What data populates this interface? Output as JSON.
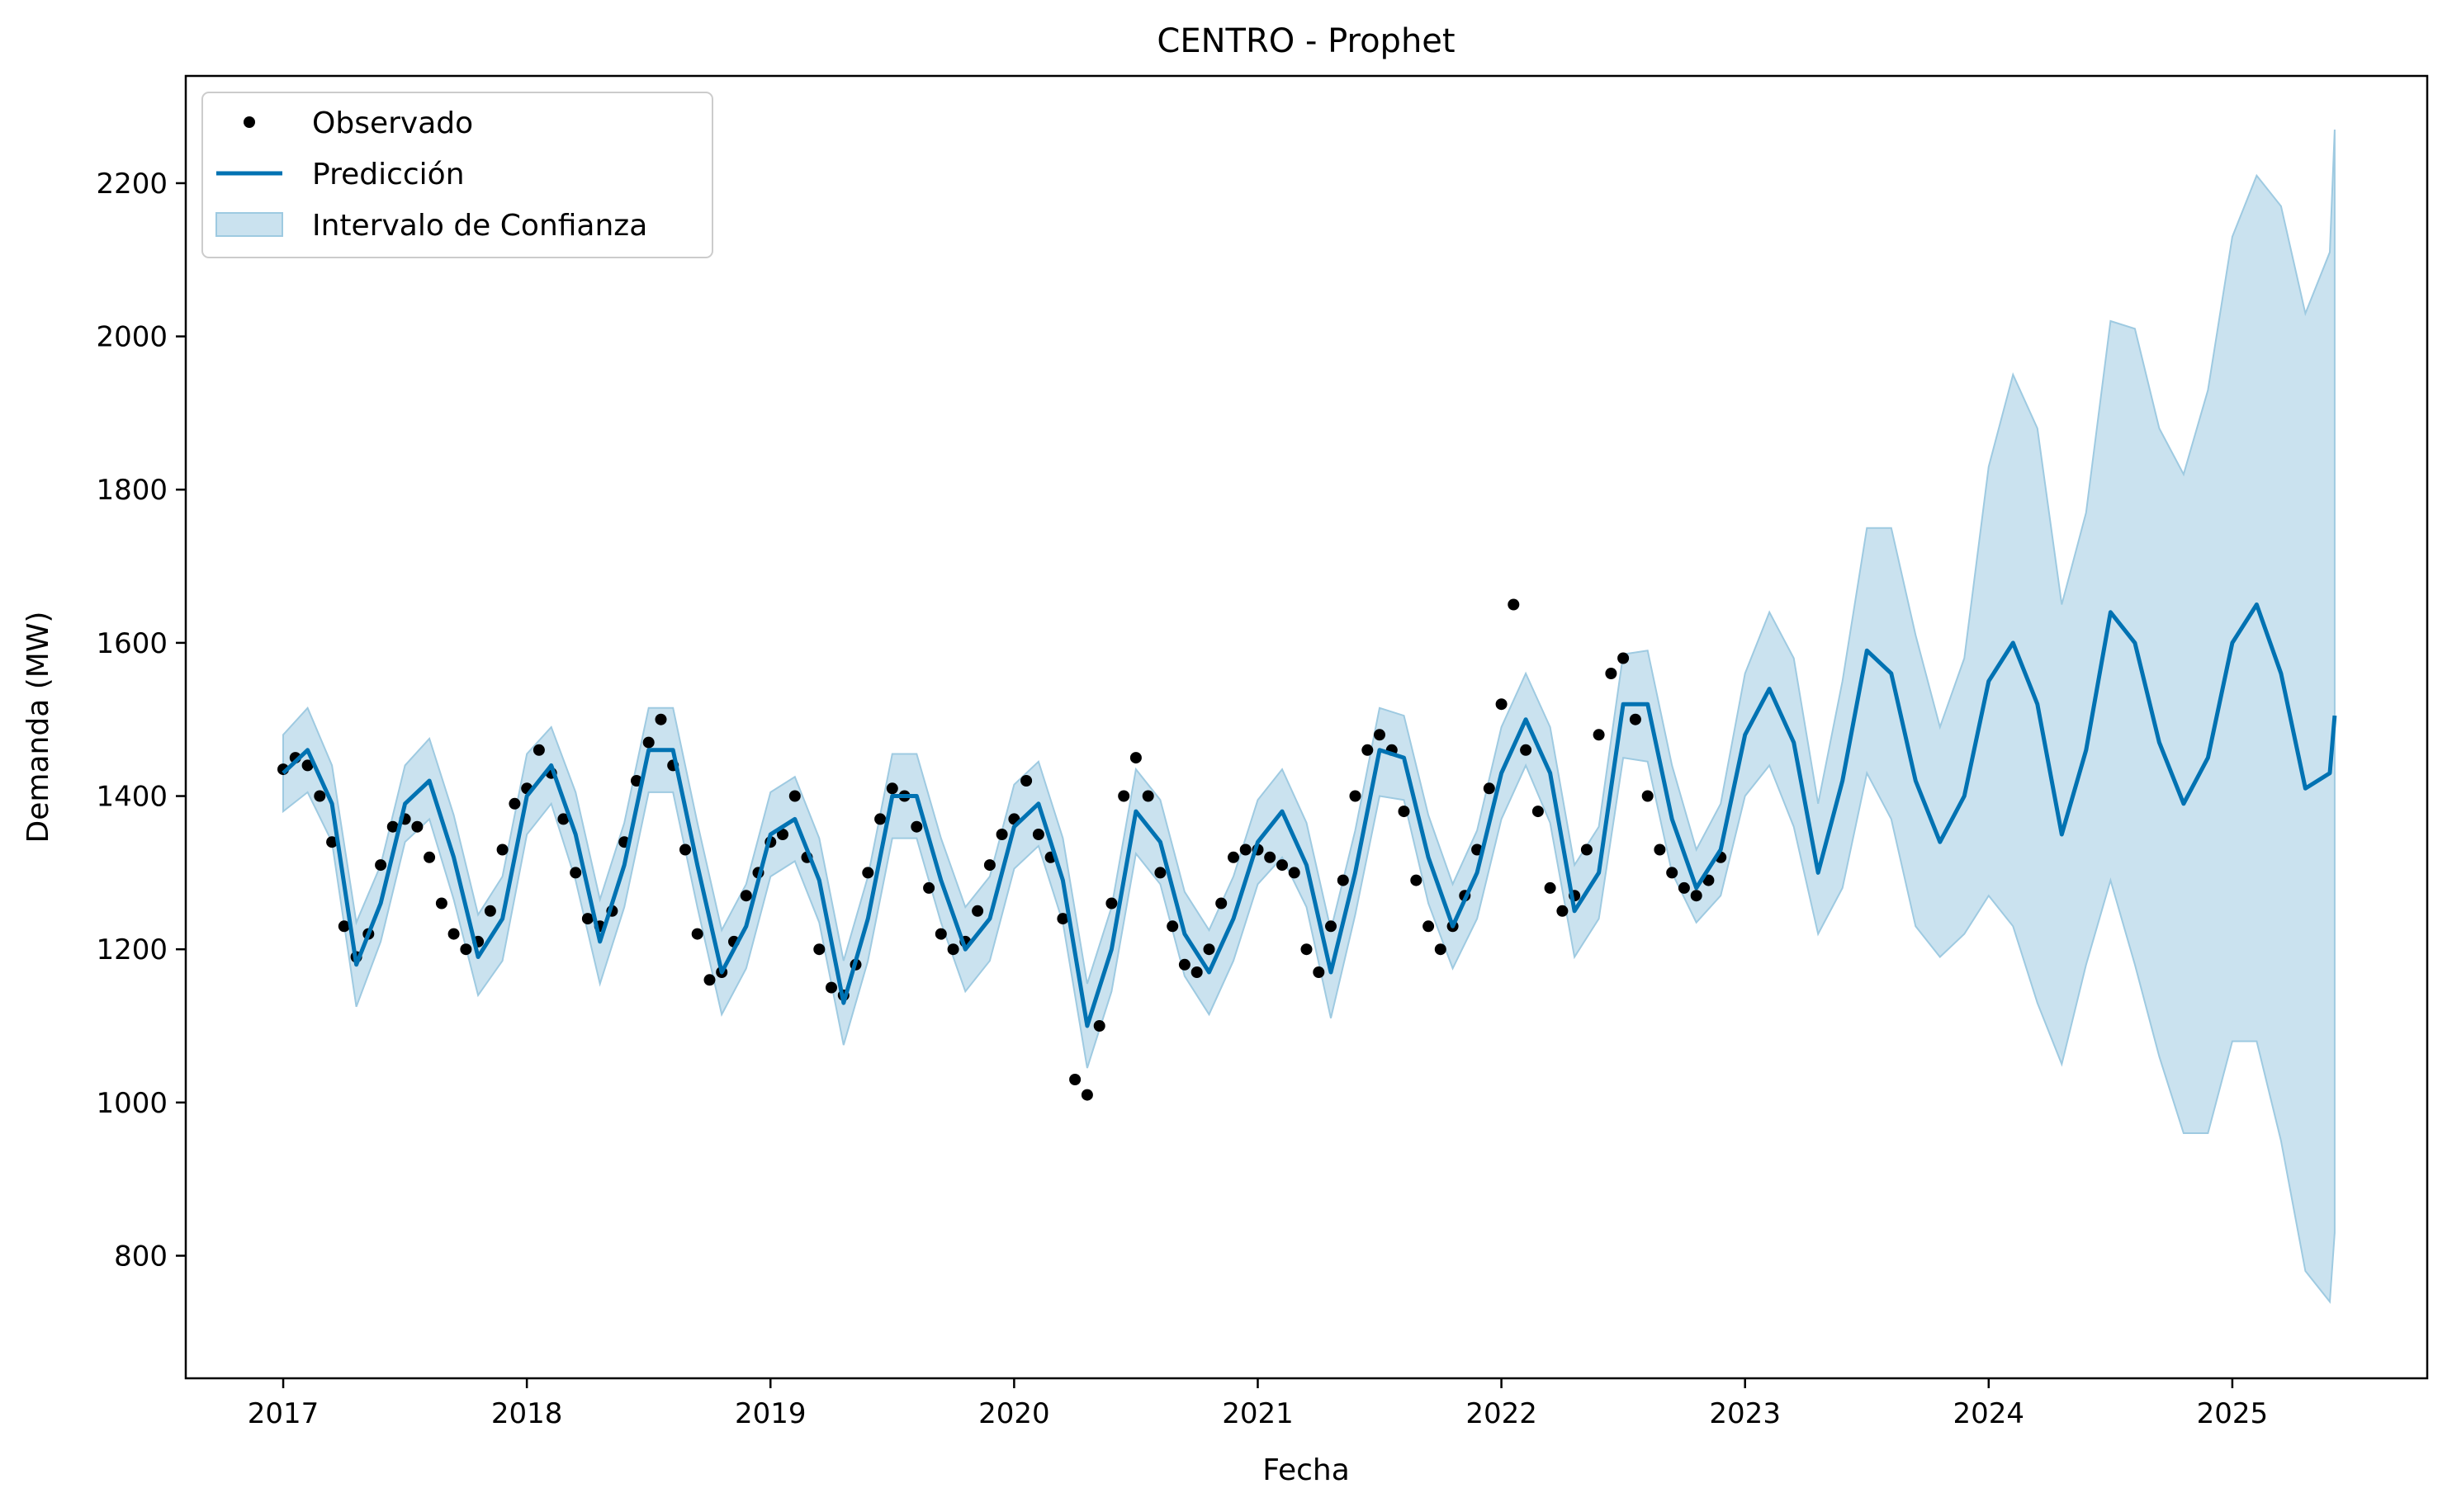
{
  "chart_data": {
    "type": "line",
    "title": "CENTRO - Prophet",
    "xlabel": "Fecha",
    "ylabel": "Demanda (MW)",
    "xlim": [
      2016.6,
      2025.8
    ],
    "ylim": [
      640,
      2340
    ],
    "x_ticks": [
      2017,
      2018,
      2019,
      2020,
      2021,
      2022,
      2023,
      2024,
      2025
    ],
    "x_tick_labels": [
      "2017",
      "2018",
      "2019",
      "2020",
      "2021",
      "2022",
      "2023",
      "2024",
      "2025"
    ],
    "y_ticks": [
      800,
      1000,
      1200,
      1400,
      1600,
      1800,
      2000,
      2200
    ],
    "y_tick_labels": [
      "800",
      "1000",
      "1200",
      "1400",
      "1600",
      "1800",
      "2000",
      "2200"
    ],
    "grid": false,
    "legend_position": "top-left",
    "colors": {
      "observed": "#000000",
      "prediction": "#0072b2",
      "interval": "#9ecae1"
    },
    "series": [
      {
        "name": "Observado",
        "kind": "scatter",
        "x": [
          2017.0,
          2017.05,
          2017.1,
          2017.15,
          2017.2,
          2017.25,
          2017.3,
          2017.35,
          2017.4,
          2017.45,
          2017.5,
          2017.55,
          2017.6,
          2017.65,
          2017.7,
          2017.75,
          2017.8,
          2017.85,
          2017.9,
          2017.95,
          2018.0,
          2018.05,
          2018.1,
          2018.15,
          2018.2,
          2018.25,
          2018.3,
          2018.35,
          2018.4,
          2018.45,
          2018.5,
          2018.55,
          2018.6,
          2018.65,
          2018.7,
          2018.75,
          2018.8,
          2018.85,
          2018.9,
          2018.95,
          2019.0,
          2019.05,
          2019.1,
          2019.15,
          2019.2,
          2019.25,
          2019.3,
          2019.35,
          2019.4,
          2019.45,
          2019.5,
          2019.55,
          2019.6,
          2019.65,
          2019.7,
          2019.75,
          2019.8,
          2019.85,
          2019.9,
          2019.95,
          2020.0,
          2020.05,
          2020.1,
          2020.15,
          2020.2,
          2020.25,
          2020.3,
          2020.35,
          2020.4,
          2020.45,
          2020.5,
          2020.55,
          2020.6,
          2020.65,
          2020.7,
          2020.75,
          2020.8,
          2020.85,
          2020.9,
          2020.95,
          2021.0,
          2021.05,
          2021.1,
          2021.15,
          2021.2,
          2021.25,
          2021.3,
          2021.35,
          2021.4,
          2021.45,
          2021.5,
          2021.55,
          2021.6,
          2021.65,
          2021.7,
          2021.75,
          2021.8,
          2021.85,
          2021.9,
          2021.95,
          2022.0,
          2022.05,
          2022.1,
          2022.15,
          2022.2,
          2022.25,
          2022.3,
          2022.35,
          2022.4,
          2022.45,
          2022.5,
          2022.55,
          2022.6,
          2022.65,
          2022.7,
          2022.75,
          2022.8,
          2022.85,
          2022.9
        ],
        "y": [
          1435,
          1450,
          1440,
          1400,
          1340,
          1230,
          1190,
          1220,
          1310,
          1360,
          1370,
          1360,
          1320,
          1260,
          1220,
          1200,
          1210,
          1250,
          1330,
          1390,
          1410,
          1460,
          1430,
          1370,
          1300,
          1240,
          1230,
          1250,
          1340,
          1420,
          1470,
          1500,
          1440,
          1330,
          1220,
          1160,
          1170,
          1210,
          1270,
          1300,
          1340,
          1350,
          1400,
          1320,
          1200,
          1150,
          1140,
          1180,
          1300,
          1370,
          1410,
          1400,
          1360,
          1280,
          1220,
          1200,
          1210,
          1250,
          1310,
          1350,
          1370,
          1420,
          1350,
          1320,
          1240,
          1030,
          1010,
          1100,
          1260,
          1400,
          1450,
          1400,
          1300,
          1230,
          1180,
          1170,
          1200,
          1260,
          1320,
          1330,
          1330,
          1320,
          1310,
          1300,
          1200,
          1170,
          1230,
          1290,
          1400,
          1460,
          1480,
          1460,
          1380,
          1290,
          1230,
          1200,
          1230,
          1270,
          1330,
          1410,
          1520,
          1650,
          1460,
          1380,
          1280,
          1250,
          1270,
          1330,
          1480,
          1560,
          1580,
          1500,
          1400,
          1330,
          1300,
          1280,
          1270,
          1290,
          1320
        ]
      },
      {
        "name": "Predicción",
        "kind": "line",
        "x": [
          2017.0,
          2017.1,
          2017.2,
          2017.3,
          2017.4,
          2017.5,
          2017.6,
          2017.7,
          2017.8,
          2017.9,
          2018.0,
          2018.1,
          2018.2,
          2018.3,
          2018.4,
          2018.5,
          2018.6,
          2018.7,
          2018.8,
          2018.9,
          2019.0,
          2019.1,
          2019.2,
          2019.3,
          2019.4,
          2019.5,
          2019.6,
          2019.7,
          2019.8,
          2019.9,
          2020.0,
          2020.1,
          2020.2,
          2020.3,
          2020.4,
          2020.5,
          2020.6,
          2020.7,
          2020.8,
          2020.9,
          2021.0,
          2021.1,
          2021.2,
          2021.3,
          2021.4,
          2021.5,
          2021.6,
          2021.7,
          2021.8,
          2021.9,
          2022.0,
          2022.1,
          2022.2,
          2022.3,
          2022.4,
          2022.5,
          2022.6,
          2022.7,
          2022.8,
          2022.9,
          2023.0,
          2023.1,
          2023.2,
          2023.3,
          2023.4,
          2023.5,
          2023.6,
          2023.7,
          2023.8,
          2023.9,
          2024.0,
          2024.1,
          2024.2,
          2024.3,
          2024.4,
          2024.5,
          2024.6,
          2024.7,
          2024.8,
          2024.9,
          2025.0,
          2025.1,
          2025.2,
          2025.3,
          2025.4,
          2025.42
        ],
        "y": [
          1430,
          1460,
          1390,
          1180,
          1260,
          1390,
          1420,
          1320,
          1190,
          1240,
          1400,
          1440,
          1350,
          1210,
          1310,
          1460,
          1460,
          1310,
          1170,
          1230,
          1350,
          1370,
          1290,
          1130,
          1240,
          1400,
          1400,
          1290,
          1200,
          1240,
          1360,
          1390,
          1290,
          1100,
          1200,
          1380,
          1340,
          1220,
          1170,
          1240,
          1340,
          1380,
          1310,
          1170,
          1300,
          1460,
          1450,
          1320,
          1230,
          1300,
          1430,
          1500,
          1430,
          1250,
          1300,
          1520,
          1520,
          1370,
          1280,
          1330,
          1480,
          1540,
          1470,
          1300,
          1420,
          1590,
          1560,
          1420,
          1340,
          1400,
          1550,
          1600,
          1520,
          1350,
          1460,
          1640,
          1600,
          1470,
          1390,
          1450,
          1600,
          1650,
          1560,
          1410,
          1430,
          1505
        ]
      },
      {
        "name": "Intervalo de Confianza",
        "kind": "band",
        "x": [
          2017.0,
          2017.1,
          2017.2,
          2017.3,
          2017.4,
          2017.5,
          2017.6,
          2017.7,
          2017.8,
          2017.9,
          2018.0,
          2018.1,
          2018.2,
          2018.3,
          2018.4,
          2018.5,
          2018.6,
          2018.7,
          2018.8,
          2018.9,
          2019.0,
          2019.1,
          2019.2,
          2019.3,
          2019.4,
          2019.5,
          2019.6,
          2019.7,
          2019.8,
          2019.9,
          2020.0,
          2020.1,
          2020.2,
          2020.3,
          2020.4,
          2020.5,
          2020.6,
          2020.7,
          2020.8,
          2020.9,
          2021.0,
          2021.1,
          2021.2,
          2021.3,
          2021.4,
          2021.5,
          2021.6,
          2021.7,
          2021.8,
          2021.9,
          2022.0,
          2022.1,
          2022.2,
          2022.3,
          2022.4,
          2022.5,
          2022.6,
          2022.7,
          2022.8,
          2022.9,
          2023.0,
          2023.1,
          2023.2,
          2023.3,
          2023.4,
          2023.5,
          2023.6,
          2023.7,
          2023.8,
          2023.9,
          2024.0,
          2024.1,
          2024.2,
          2024.3,
          2024.4,
          2024.5,
          2024.6,
          2024.7,
          2024.8,
          2024.9,
          2025.0,
          2025.1,
          2025.2,
          2025.3,
          2025.4,
          2025.42
        ],
        "lower": [
          1380,
          1405,
          1340,
          1125,
          1210,
          1340,
          1370,
          1265,
          1140,
          1185,
          1350,
          1390,
          1290,
          1155,
          1255,
          1405,
          1405,
          1255,
          1115,
          1175,
          1295,
          1315,
          1235,
          1075,
          1185,
          1345,
          1345,
          1235,
          1145,
          1185,
          1305,
          1335,
          1235,
          1045,
          1145,
          1325,
          1285,
          1165,
          1115,
          1185,
          1285,
          1320,
          1255,
          1110,
          1245,
          1400,
          1395,
          1260,
          1175,
          1240,
          1370,
          1440,
          1365,
          1190,
          1240,
          1450,
          1445,
          1300,
          1235,
          1270,
          1400,
          1440,
          1360,
          1220,
          1280,
          1430,
          1370,
          1230,
          1190,
          1220,
          1270,
          1230,
          1130,
          1050,
          1180,
          1290,
          1180,
          1060,
          960,
          960,
          1080,
          1080,
          950,
          780,
          740,
          830
        ],
        "upper": [
          1480,
          1515,
          1440,
          1235,
          1310,
          1440,
          1475,
          1375,
          1245,
          1295,
          1455,
          1490,
          1405,
          1265,
          1365,
          1515,
          1515,
          1365,
          1225,
          1285,
          1405,
          1425,
          1345,
          1185,
          1295,
          1455,
          1455,
          1345,
          1255,
          1295,
          1415,
          1445,
          1345,
          1155,
          1255,
          1435,
          1395,
          1275,
          1225,
          1295,
          1395,
          1435,
          1365,
          1225,
          1355,
          1515,
          1505,
          1375,
          1285,
          1355,
          1490,
          1560,
          1490,
          1310,
          1360,
          1585,
          1590,
          1440,
          1330,
          1390,
          1560,
          1640,
          1580,
          1390,
          1550,
          1750,
          1750,
          1610,
          1490,
          1580,
          1830,
          1950,
          1880,
          1650,
          1770,
          2020,
          2010,
          1880,
          1820,
          1930,
          2130,
          2210,
          2170,
          2030,
          2110,
          2270
        ]
      }
    ]
  }
}
